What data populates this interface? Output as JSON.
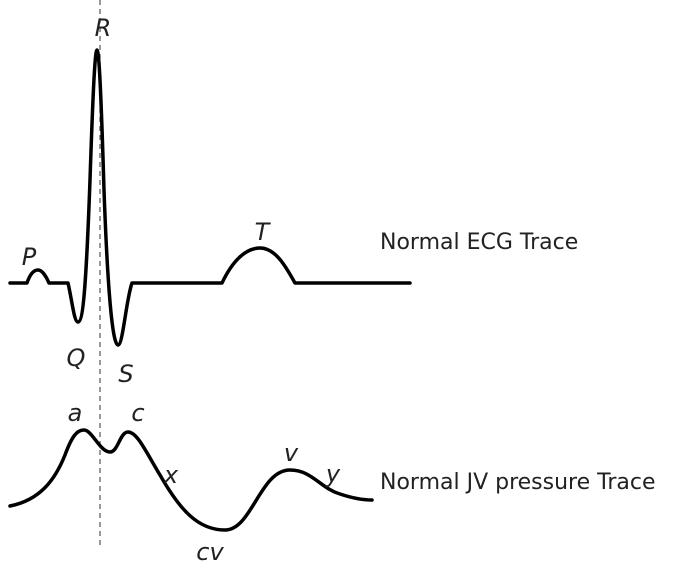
{
  "ecg": {
    "title": "Normal ECG Trace",
    "labels": [
      "P",
      "Q",
      "R",
      "S",
      "T"
    ]
  },
  "jvp": {
    "title": "Normal JV pressure Trace",
    "labels": [
      "a",
      "c",
      "x",
      "v",
      "y",
      "cv"
    ]
  }
}
